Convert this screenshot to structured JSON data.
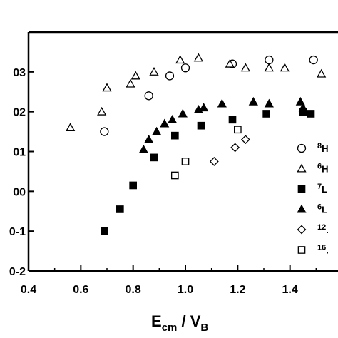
{
  "chart_data": {
    "type": "scatter",
    "xlabel_main": "E",
    "xlabel_sub1": "cm",
    "xlabel_mid": " / V",
    "xlabel_sub2": "B",
    "xlim": [
      0.4,
      1.6
    ],
    "ylim_log10": [
      -2,
      4
    ],
    "y_scale": "log",
    "x_ticks": [
      "0.4",
      "0.6",
      "0.8",
      "1.0",
      "1.2",
      "1.4"
    ],
    "y_tick_labels": [
      "03",
      "02",
      "01",
      "00",
      "0-1",
      "0-2"
    ],
    "legend_position": "right",
    "series": [
      {
        "name": "8H",
        "marker": "circle-open",
        "points": [
          [
            0.69,
            1.5
          ],
          [
            0.86,
            2.4
          ],
          [
            0.94,
            2.9
          ],
          [
            1.0,
            3.1
          ],
          [
            1.18,
            3.2
          ],
          [
            1.32,
            3.3
          ],
          [
            1.49,
            3.3
          ]
        ]
      },
      {
        "name": "6H",
        "marker": "triangle-open",
        "points": [
          [
            0.56,
            1.6
          ],
          [
            0.68,
            2.0
          ],
          [
            0.7,
            2.6
          ],
          [
            0.79,
            2.7
          ],
          [
            0.81,
            2.9
          ],
          [
            0.88,
            3.0
          ],
          [
            0.98,
            3.3
          ],
          [
            1.05,
            3.35
          ],
          [
            1.17,
            3.2
          ],
          [
            1.23,
            3.1
          ],
          [
            1.32,
            3.1
          ],
          [
            1.38,
            3.1
          ],
          [
            1.52,
            2.95
          ]
        ]
      },
      {
        "name": "7L",
        "marker": "square-filled",
        "points": [
          [
            0.69,
            -1.0
          ],
          [
            0.75,
            -0.45
          ],
          [
            0.8,
            0.15
          ],
          [
            0.88,
            0.85
          ],
          [
            0.96,
            1.4
          ],
          [
            1.06,
            1.65
          ],
          [
            1.18,
            1.8
          ],
          [
            1.31,
            1.95
          ],
          [
            1.45,
            2.0
          ],
          [
            1.48,
            1.95
          ]
        ]
      },
      {
        "name": "6L",
        "marker": "triangle-filled",
        "points": [
          [
            0.84,
            1.05
          ],
          [
            0.86,
            1.3
          ],
          [
            0.89,
            1.5
          ],
          [
            0.92,
            1.7
          ],
          [
            0.95,
            1.8
          ],
          [
            0.99,
            1.95
          ],
          [
            1.05,
            2.05
          ],
          [
            1.07,
            2.1
          ],
          [
            1.14,
            2.2
          ],
          [
            1.26,
            2.25
          ],
          [
            1.32,
            2.2
          ],
          [
            1.44,
            2.25
          ],
          [
            1.45,
            2.1
          ]
        ]
      },
      {
        "name": "12.",
        "marker": "diamond-open",
        "points": [
          [
            1.11,
            0.75
          ],
          [
            1.19,
            1.1
          ],
          [
            1.23,
            1.3
          ]
        ]
      },
      {
        "name": "16.",
        "marker": "square-open",
        "points": [
          [
            0.96,
            0.4
          ],
          [
            1.0,
            0.75
          ],
          [
            1.2,
            1.55
          ]
        ]
      }
    ]
  }
}
